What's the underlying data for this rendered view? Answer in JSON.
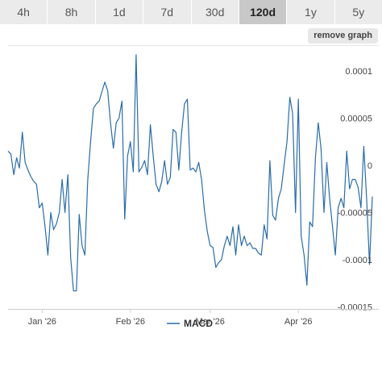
{
  "tabs": [
    {
      "label": "4h"
    },
    {
      "label": "8h"
    },
    {
      "label": "1d"
    },
    {
      "label": "7d"
    },
    {
      "label": "30d"
    },
    {
      "label": "120d",
      "active": true
    },
    {
      "label": "1y"
    },
    {
      "label": "5y"
    }
  ],
  "remove_graph_label": "remove graph",
  "chart_data": {
    "type": "line",
    "ylim": [
      -0.000152,
      0.000122
    ],
    "yticks": [
      {
        "value": 0.0001,
        "label": "0.0001"
      },
      {
        "value": 5e-05,
        "label": "0.00005"
      },
      {
        "value": 0,
        "label": "0"
      },
      {
        "value": -5e-05,
        "label": "-0.00005"
      },
      {
        "value": -0.0001,
        "label": "-0.0001"
      },
      {
        "value": -0.00015,
        "label": "-0.00015"
      }
    ],
    "xlim": [
      "2025-12-20",
      "2026-04-27"
    ],
    "xticks": [
      {
        "date": "2026-01-01",
        "label": "Jan '26"
      },
      {
        "date": "2026-02-01",
        "label": "Feb '26"
      },
      {
        "date": "2026-03-01",
        "label": "Mar '26"
      },
      {
        "date": "2026-04-01",
        "label": "Apr '26"
      }
    ],
    "grid": false,
    "legend": "bottom-center",
    "series": [
      {
        "name": "MACD",
        "color": "#2a6ca8",
        "x": [
          "2025-12-20",
          "2025-12-21",
          "2025-12-22",
          "2025-12-23",
          "2025-12-24",
          "2025-12-25",
          "2025-12-26",
          "2025-12-27",
          "2025-12-28",
          "2025-12-29",
          "2025-12-30",
          "2025-12-31",
          "2026-01-01",
          "2026-01-02",
          "2026-01-03",
          "2026-01-04",
          "2026-01-05",
          "2026-01-06",
          "2026-01-07",
          "2026-01-08",
          "2026-01-09",
          "2026-01-10",
          "2026-01-11",
          "2026-01-12",
          "2026-01-13",
          "2026-01-14",
          "2026-01-15",
          "2026-01-16",
          "2026-01-17",
          "2026-01-18",
          "2026-01-19",
          "2026-01-20",
          "2026-01-21",
          "2026-01-22",
          "2026-01-23",
          "2026-01-24",
          "2026-01-25",
          "2026-01-26",
          "2026-01-27",
          "2026-01-28",
          "2026-01-29",
          "2026-01-30",
          "2026-01-31",
          "2026-02-01",
          "2026-02-02",
          "2026-02-03",
          "2026-02-04",
          "2026-02-05",
          "2026-02-06",
          "2026-02-07",
          "2026-02-08",
          "2026-02-09",
          "2026-02-10",
          "2026-02-11",
          "2026-02-12",
          "2026-02-13",
          "2026-02-14",
          "2026-02-15",
          "2026-02-16",
          "2026-02-17",
          "2026-02-18",
          "2026-02-19",
          "2026-02-20",
          "2026-02-21",
          "2026-02-22",
          "2026-02-23",
          "2026-02-24",
          "2026-02-25",
          "2026-02-26",
          "2026-02-27",
          "2026-02-28",
          "2026-03-01",
          "2026-03-02",
          "2026-03-03",
          "2026-03-04",
          "2026-03-05",
          "2026-03-06",
          "2026-03-07",
          "2026-03-08",
          "2026-03-09",
          "2026-03-10",
          "2026-03-11",
          "2026-03-12",
          "2026-03-13",
          "2026-03-14",
          "2026-03-15",
          "2026-03-16",
          "2026-03-17",
          "2026-03-18",
          "2026-03-19",
          "2026-03-20",
          "2026-03-21",
          "2026-03-22",
          "2026-03-23",
          "2026-03-24",
          "2026-03-25",
          "2026-03-26",
          "2026-03-27",
          "2026-03-28",
          "2026-03-29",
          "2026-03-30",
          "2026-03-31",
          "2026-04-01",
          "2026-04-02",
          "2026-04-03",
          "2026-04-04",
          "2026-04-05",
          "2026-04-06",
          "2026-04-07",
          "2026-04-08",
          "2026-04-09",
          "2026-04-10",
          "2026-04-11",
          "2026-04-12",
          "2026-04-13",
          "2026-04-14",
          "2026-04-15",
          "2026-04-16",
          "2026-04-17",
          "2026-04-18",
          "2026-04-19",
          "2026-04-20",
          "2026-04-21",
          "2026-04-22",
          "2026-04-23",
          "2026-04-24",
          "2026-04-25",
          "2026-04-26",
          "2026-04-27"
        ],
        "values": [
          1.5e-05,
          1.2e-05,
          -1e-05,
          8e-06,
          -3e-06,
          3.5e-05,
          3e-06,
          -5e-06,
          -1.2e-05,
          -1.7e-05,
          -2e-05,
          -4.5e-05,
          -4e-05,
          -6.5e-05,
          -9.5e-05,
          -5e-05,
          -6.8e-05,
          -6.2e-05,
          -5e-05,
          -1.5e-05,
          -5e-05,
          -1e-05,
          -9.8e-05,
          -0.000133,
          -0.000133,
          -5.2e-05,
          -8.5e-05,
          -9.5e-05,
          -1.5e-05,
          2.5e-05,
          6e-05,
          6.5e-05,
          6.8e-05,
          7.8e-05,
          8.8e-05,
          7.9e-05,
          4.5e-05,
          1.8e-05,
          4.5e-05,
          5e-05,
          6.8e-05,
          -5.7e-05,
          1e-05,
          2.5e-05,
          -7e-06,
          0.000117,
          -7e-06,
          -2e-06,
          5e-06,
          -1e-05,
          4.3e-05,
          1e-05,
          -2e-05,
          -2.8e-05,
          -1.7e-05,
          5e-06,
          -2e-05,
          -1.3e-05,
          3.8e-05,
          3.5e-05,
          -5e-06,
          3.5e-05,
          6.5e-05,
          7e-05,
          -5e-06,
          -3e-06,
          -7e-06,
          3e-06,
          -1.5e-05,
          -4.8e-05,
          -7e-05,
          -8.5e-05,
          -8.7e-05,
          -0.000108,
          -0.000103,
          -0.0001,
          -8.5e-05,
          -7.5e-05,
          -8.5e-05,
          -6.5e-05,
          -9.5e-05,
          -6.3e-05,
          -8.5e-05,
          -7.5e-05,
          -8.5e-05,
          -8.2e-05,
          -8.8e-05,
          -8.8e-05,
          -9.3e-05,
          -9.5e-05,
          -6.3e-05,
          -7.8e-05,
          5e-06,
          -5.3e-05,
          -5.8e-05,
          -3.5e-05,
          -2.5e-05,
          0,
          2.5e-05,
          7.2e-05,
          5.5e-05,
          -5e-05,
          7e-05,
          -7.5e-05,
          -9.5e-05,
          -0.000127,
          -6e-05,
          -6.5e-05,
          8e-06,
          4.5e-05,
          1.7e-05,
          -5e-05,
          3e-06,
          -3.5e-05,
          -6.5e-05,
          -9.5e-05,
          -4.5e-05,
          -3.5e-05,
          -4.5e-05,
          1.5e-05,
          -2.5e-05,
          -1.5e-05,
          -1.5e-05,
          -2.3e-05,
          -4.5e-05,
          2e-05,
          -3.5e-05,
          -0.000105,
          -3.3e-05
        ]
      }
    ]
  }
}
